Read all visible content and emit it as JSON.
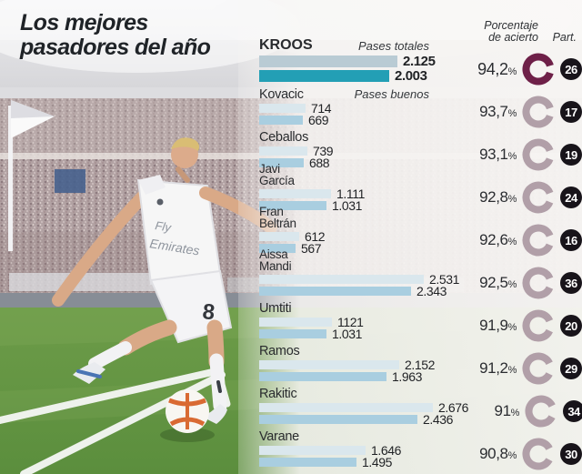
{
  "title": {
    "line1": "Los mejores",
    "line2": "pasadores del año"
  },
  "legend": {
    "total_label": "Pases totales",
    "good_label": "Pases buenos"
  },
  "columns": {
    "accuracy_header": "Porcentaje\nde acierto",
    "matches_header": "Part."
  },
  "photo": {
    "jersey_text": "Fly Emirates",
    "shorts_number": "8"
  },
  "colors": {
    "total_bar": "#dae7ed",
    "good_bar": "#a9cee0",
    "highlight_total_bar": "#b9cbd4",
    "highlight_good_bar": "#239fb5",
    "ring_highlight": "#6e2048",
    "ring_normal": "#b19fa8",
    "badge_bg": "#18141a",
    "badge_text": "#ffffff",
    "title_text": "#1f2327",
    "grass": "#619441"
  },
  "chart_data": {
    "type": "bar",
    "orientation": "horizontal",
    "title": "Los mejores pasadores del año",
    "series_labels": [
      "Pases totales",
      "Pases buenos"
    ],
    "value_axis_max": 2800,
    "players": [
      {
        "name": "KROOS",
        "name_lines": "KROOS",
        "total": 2125,
        "total_label": "2.125",
        "good": 2003,
        "good_label": "2.003",
        "accuracy": 94.2,
        "accuracy_label": "94,2",
        "matches": "26",
        "highlight": true
      },
      {
        "name": "Kovacic",
        "name_lines": "Kovacic",
        "total": 714,
        "total_label": "714",
        "good": 669,
        "good_label": "669",
        "accuracy": 93.7,
        "accuracy_label": "93,7",
        "matches": "17",
        "highlight": false
      },
      {
        "name": "Ceballos",
        "name_lines": "Ceballos",
        "total": 739,
        "total_label": "739",
        "good": 688,
        "good_label": "688",
        "accuracy": 93.1,
        "accuracy_label": "93,1",
        "matches": "19",
        "highlight": false
      },
      {
        "name": "Javi García",
        "name_lines": "Javi\nGarcía",
        "total": 1111,
        "total_label": "1.111",
        "good": 1031,
        "good_label": "1.031",
        "accuracy": 92.8,
        "accuracy_label": "92,8",
        "matches": "24",
        "highlight": false
      },
      {
        "name": "Fran Beltrán",
        "name_lines": "Fran\nBeltrán",
        "total": 612,
        "total_label": "612",
        "good": 567,
        "good_label": "567",
        "accuracy": 92.6,
        "accuracy_label": "92,6",
        "matches": "16",
        "highlight": false
      },
      {
        "name": "Aissa Mandi",
        "name_lines": "Aissa\nMandi",
        "total": 2531,
        "total_label": "2.531",
        "good": 2343,
        "good_label": "2.343",
        "accuracy": 92.5,
        "accuracy_label": "92,5",
        "matches": "36",
        "highlight": false
      },
      {
        "name": "Umtiti",
        "name_lines": "Umtiti",
        "total": 1121,
        "total_label": "1121",
        "good": 1031,
        "good_label": "1.031",
        "accuracy": 91.9,
        "accuracy_label": "91,9",
        "matches": "20",
        "highlight": false
      },
      {
        "name": "Ramos",
        "name_lines": "Ramos",
        "total": 2152,
        "total_label": "2.152",
        "good": 1963,
        "good_label": "1.963",
        "accuracy": 91.2,
        "accuracy_label": "91,2",
        "matches": "29",
        "highlight": false
      },
      {
        "name": "Rakitic",
        "name_lines": "Rakitic",
        "total": 2676,
        "total_label": "2.676",
        "good": 2436,
        "good_label": "2.436",
        "accuracy": 91.0,
        "accuracy_label": "91",
        "matches": "34",
        "highlight": false
      },
      {
        "name": "Varane",
        "name_lines": "Varane",
        "total": 1646,
        "total_label": "1.646",
        "good": 1495,
        "good_label": "1.495",
        "accuracy": 90.8,
        "accuracy_label": "90,8",
        "matches": "30",
        "highlight": false
      }
    ]
  }
}
